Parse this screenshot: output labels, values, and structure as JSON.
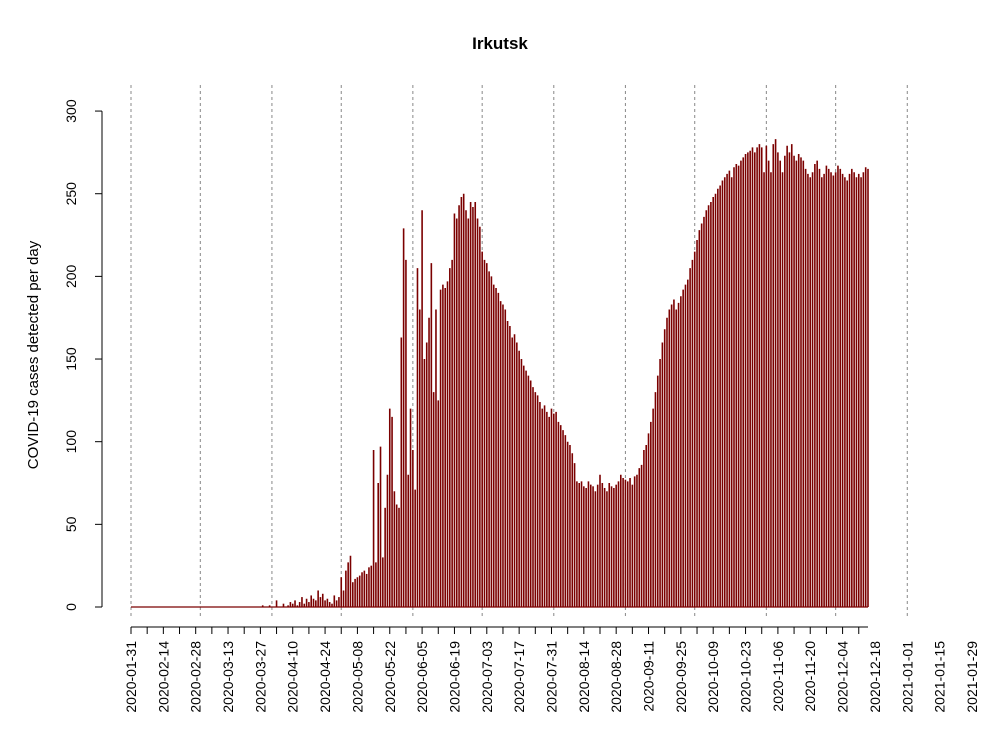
{
  "chart_data": {
    "type": "bar",
    "title": "Irkutsk",
    "xlabel": "",
    "ylabel": "COVID-19 cases detected per day",
    "ylim": [
      0,
      320
    ],
    "y_ticks": [
      0,
      50,
      100,
      150,
      200,
      250,
      300
    ],
    "x_start_date": "2020-01-31",
    "x_tick_labels": [
      "2020-01-31",
      "2020-02-14",
      "2020-02-28",
      "2020-03-13",
      "2020-03-27",
      "2020-04-10",
      "2020-04-24",
      "2020-05-08",
      "2020-05-22",
      "2020-06-05",
      "2020-06-19",
      "2020-07-03",
      "2020-07-17",
      "2020-07-31",
      "2020-08-14",
      "2020-08-28",
      "2020-09-11",
      "2020-09-25",
      "2020-10-09",
      "2020-10-23",
      "2020-11-06",
      "2020-11-20",
      "2020-12-04",
      "2020-12-18",
      "2021-01-01",
      "2021-01-15",
      "2021-01-29"
    ],
    "vlines": [
      "2020-01-31",
      "2020-03-01",
      "2020-04-01",
      "2020-05-01",
      "2020-06-01",
      "2020-07-01",
      "2020-08-01",
      "2020-09-01",
      "2020-10-01",
      "2020-11-01",
      "2020-12-01",
      "2021-01-01"
    ],
    "bar_color": "#7b0000",
    "grid": false,
    "series": [
      {
        "x_start": "2020-01-31",
        "values": [
          0,
          0,
          0,
          0,
          0,
          0,
          0,
          0,
          0,
          0,
          0,
          0,
          0,
          0,
          0,
          0,
          0,
          0,
          0,
          0,
          0,
          0,
          0,
          0,
          0,
          0,
          0,
          0,
          0,
          0,
          0,
          0,
          0,
          0,
          0,
          0,
          0,
          0,
          0,
          0,
          0,
          0,
          0,
          0,
          0,
          0,
          0,
          0,
          0,
          0,
          0,
          0,
          0,
          0,
          0,
          0,
          0,
          1,
          0,
          0,
          1,
          0,
          0,
          4,
          0,
          0,
          2,
          0,
          1,
          3,
          2,
          4,
          1,
          3,
          6,
          2,
          5,
          3,
          7,
          5,
          4,
          10,
          6,
          8,
          4,
          5,
          3,
          2,
          7,
          4,
          6,
          18,
          10,
          22,
          27,
          31,
          15,
          17,
          18,
          19,
          21,
          22,
          20,
          24,
          25,
          95,
          27,
          75,
          97,
          30,
          60,
          80,
          120,
          115,
          70,
          62,
          60,
          163,
          229,
          210,
          80,
          120,
          95,
          71,
          205,
          180,
          240,
          150,
          160,
          175,
          208,
          130,
          180,
          125,
          192,
          195,
          193,
          197,
          205,
          210,
          238,
          235,
          243,
          248,
          250,
          240,
          235,
          245,
          242,
          245,
          235,
          230,
          215,
          210,
          208,
          203,
          200,
          195,
          193,
          190,
          185,
          183,
          180,
          173,
          170,
          163,
          165,
          160,
          155,
          150,
          146,
          143,
          140,
          137,
          133,
          130,
          128,
          124,
          120,
          122,
          118,
          115,
          120,
          117,
          118,
          112,
          110,
          107,
          104,
          100,
          98,
          93,
          87,
          76,
          75,
          76,
          73,
          72,
          76,
          74,
          73,
          70,
          74,
          80,
          75,
          72,
          70,
          75,
          73,
          72,
          74,
          76,
          80,
          78,
          77,
          76,
          78,
          74,
          79,
          80,
          84,
          86,
          95,
          98,
          105,
          112,
          120,
          130,
          140,
          150,
          160,
          168,
          175,
          180,
          183,
          186,
          180,
          184,
          188,
          192,
          195,
          198,
          205,
          210,
          215,
          222,
          228,
          232,
          236,
          240,
          243,
          245,
          248,
          250,
          253,
          255,
          258,
          260,
          262,
          264,
          260,
          266,
          268,
          267,
          270,
          272,
          274,
          275,
          276,
          278,
          275,
          278,
          280,
          278,
          263,
          279,
          270,
          263,
          280,
          283,
          275,
          270,
          263,
          273,
          279,
          275,
          280,
          273,
          270,
          274,
          272,
          270,
          265,
          262,
          260,
          263,
          268,
          270,
          265,
          260,
          262,
          267,
          265,
          263,
          261,
          263,
          267,
          265,
          262,
          260,
          258,
          262,
          265,
          263,
          260,
          262,
          260,
          263,
          266,
          265
        ]
      }
    ]
  }
}
